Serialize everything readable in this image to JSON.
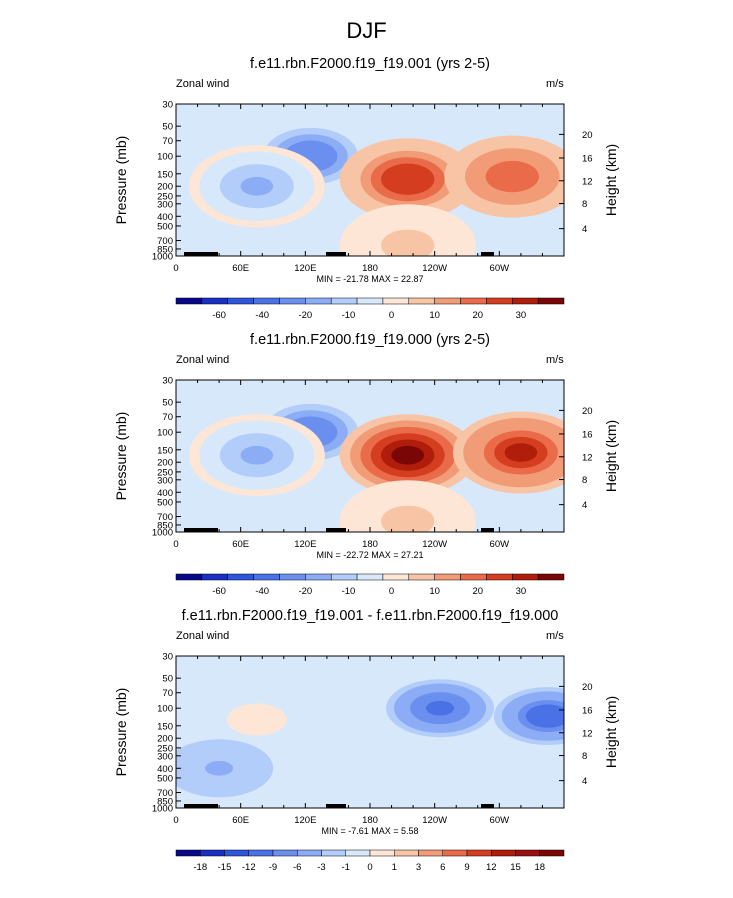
{
  "main_title": "DJF",
  "chart_data": [
    {
      "type": "heatmap",
      "title": "f.e11.rbn.F2000.f19_f19.001 (yrs 2-5)",
      "var_label": "Zonal wind",
      "units": "m/s",
      "ylabel": "Pressure (mb)",
      "y2label": "Height (km)",
      "pressure_ticks": [
        "30",
        "50",
        "70",
        "100",
        "150",
        "200",
        "250",
        "300",
        "400",
        "500",
        "700",
        "850",
        "1000"
      ],
      "height_ticks": [
        "20",
        "16",
        "12",
        "8",
        "4"
      ],
      "x_ticks": [
        "0",
        "60E",
        "120E",
        "180",
        "120W",
        "60W"
      ],
      "min": "-21.78",
      "max": "22.87",
      "stats": "MIN = -21.78  MAX =  22.87",
      "levels": [
        "-60",
        "-40",
        "-20",
        "-10",
        "0",
        "10",
        "20",
        "30"
      ],
      "features": [
        {
          "lon": 125,
          "p": 100,
          "value": -20
        },
        {
          "lon": 75,
          "p": 200,
          "value": -12
        },
        {
          "lon": 215,
          "p": 170,
          "value": 20
        },
        {
          "lon": 312,
          "p": 160,
          "value": 15
        },
        {
          "lon": 215,
          "p": 780,
          "value": 3
        }
      ]
    },
    {
      "type": "heatmap",
      "title": "f.e11.rbn.F2000.f19_f19.000 (yrs 2-5)",
      "var_label": "Zonal wind",
      "units": "m/s",
      "ylabel": "Pressure (mb)",
      "y2label": "Height (km)",
      "pressure_ticks": [
        "30",
        "50",
        "70",
        "100",
        "150",
        "200",
        "250",
        "300",
        "400",
        "500",
        "700",
        "850",
        "1000"
      ],
      "height_ticks": [
        "20",
        "16",
        "12",
        "8",
        "4"
      ],
      "x_ticks": [
        "0",
        "60E",
        "120E",
        "180",
        "120W",
        "60W"
      ],
      "min": "-22.72",
      "max": "27.21",
      "stats": "MIN = -22.72  MAX =  27.21",
      "levels": [
        "-60",
        "-40",
        "-20",
        "-10",
        "0",
        "10",
        "20",
        "30"
      ],
      "features": [
        {
          "lon": 125,
          "p": 100,
          "value": -20
        },
        {
          "lon": 75,
          "p": 170,
          "value": -14
        },
        {
          "lon": 215,
          "p": 170,
          "value": 27
        },
        {
          "lon": 320,
          "p": 160,
          "value": 23
        },
        {
          "lon": 215,
          "p": 780,
          "value": 3
        }
      ]
    },
    {
      "type": "heatmap",
      "title": "f.e11.rbn.F2000.f19_f19.001 - f.e11.rbn.F2000.f19_f19.000",
      "var_label": "Zonal wind",
      "units": "m/s",
      "ylabel": "Pressure (mb)",
      "y2label": "Height (km)",
      "pressure_ticks": [
        "30",
        "50",
        "70",
        "100",
        "150",
        "200",
        "250",
        "300",
        "400",
        "500",
        "700",
        "850",
        "1000"
      ],
      "height_ticks": [
        "20",
        "16",
        "12",
        "8",
        "4"
      ],
      "x_ticks": [
        "0",
        "60E",
        "120E",
        "180",
        "120W",
        "60W"
      ],
      "min": "-7.61",
      "max": "5.58",
      "stats": "MIN = -7.61  MAX =  5.58",
      "levels": [
        "-18",
        "-15",
        "-12",
        "-9",
        "-6",
        "-3",
        "-1",
        "0",
        "1",
        "3",
        "6",
        "9",
        "12",
        "15",
        "18"
      ],
      "features": [
        {
          "lon": 75,
          "p": 130,
          "value": 3
        },
        {
          "lon": 245,
          "p": 100,
          "value": -6
        },
        {
          "lon": 345,
          "p": 120,
          "value": -7
        },
        {
          "lon": 40,
          "p": 400,
          "value": -2
        }
      ]
    }
  ],
  "colorbar": {
    "colors_8": [
      "#08088a",
      "#1d3fd1",
      "#4a72e6",
      "#7ea1f2",
      "#b2cdfa",
      "#d8e8fb",
      "#fde6d6",
      "#f8c4a6",
      "#f29b77",
      "#ea6b49",
      "#d53d21",
      "#b01d0a",
      "#7a0606"
    ],
    "colors_full": [
      "#08088a",
      "#1a2fc4",
      "#2f55dc",
      "#4a72e6",
      "#6a8fef",
      "#8cadf5",
      "#b2cdfa",
      "#d8e8fb",
      "#fde6d6",
      "#f8c4a6",
      "#f29b77",
      "#ea6b49",
      "#d53d21",
      "#b01d0a",
      "#7a0606"
    ],
    "colors_diff": [
      "#08088a",
      "#1a2fc4",
      "#2f55dc",
      "#4a72e6",
      "#6a8fef",
      "#8cadf5",
      "#b2cdfa",
      "#d8e8fb",
      "#fde6d6",
      "#f8c4a6",
      "#f29b77",
      "#ea6b49",
      "#d53d21",
      "#b01d0a",
      "#981010",
      "#7a0606"
    ]
  }
}
